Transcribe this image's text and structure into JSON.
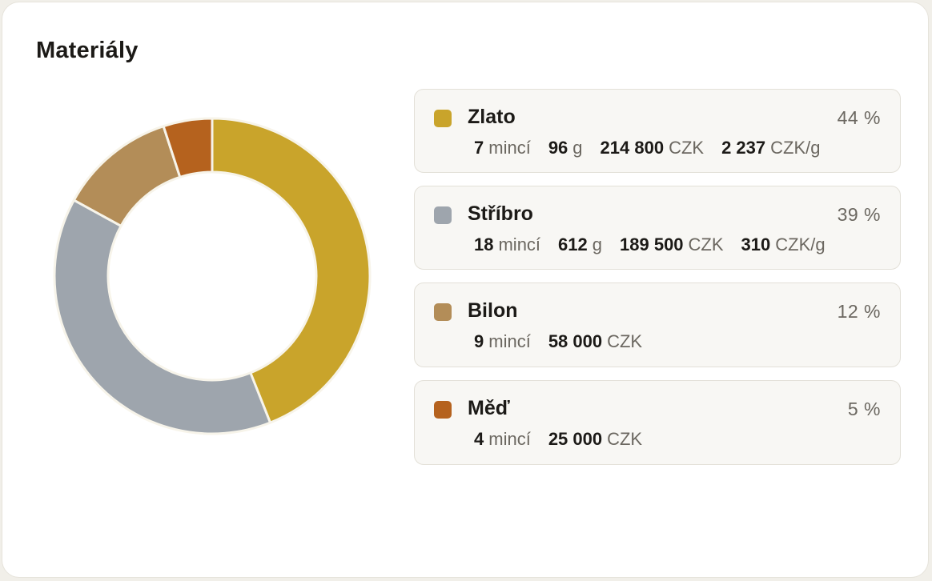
{
  "title": "Materiály",
  "chart_data": {
    "type": "pie",
    "categories": [
      "Zlato",
      "Stříbro",
      "Bilon",
      "Měď"
    ],
    "values": [
      44,
      39,
      12,
      5
    ],
    "colors": [
      "#c9a42b",
      "#9ea5ad",
      "#b38d58",
      "#b5621e"
    ]
  },
  "legend": [
    {
      "name": "Zlato",
      "percent": "44 %",
      "color": "#c9a42b",
      "coins": "7",
      "coins_unit": "mincí",
      "weight": "96",
      "weight_unit": "g",
      "value": "214 800",
      "value_unit": "CZK",
      "price": "2 237",
      "price_unit": "CZK/g"
    },
    {
      "name": "Stříbro",
      "percent": "39 %",
      "color": "#9ea5ad",
      "coins": "18",
      "coins_unit": "mincí",
      "weight": "612",
      "weight_unit": "g",
      "value": "189 500",
      "value_unit": "CZK",
      "price": "310",
      "price_unit": "CZK/g"
    },
    {
      "name": "Bilon",
      "percent": "12 %",
      "color": "#b38d58",
      "coins": "9",
      "coins_unit": "mincí",
      "value": "58 000",
      "value_unit": "CZK"
    },
    {
      "name": "Měď",
      "percent": "5 %",
      "color": "#b5621e",
      "coins": "4",
      "coins_unit": "mincí",
      "value": "25 000",
      "value_unit": "CZK"
    }
  ]
}
